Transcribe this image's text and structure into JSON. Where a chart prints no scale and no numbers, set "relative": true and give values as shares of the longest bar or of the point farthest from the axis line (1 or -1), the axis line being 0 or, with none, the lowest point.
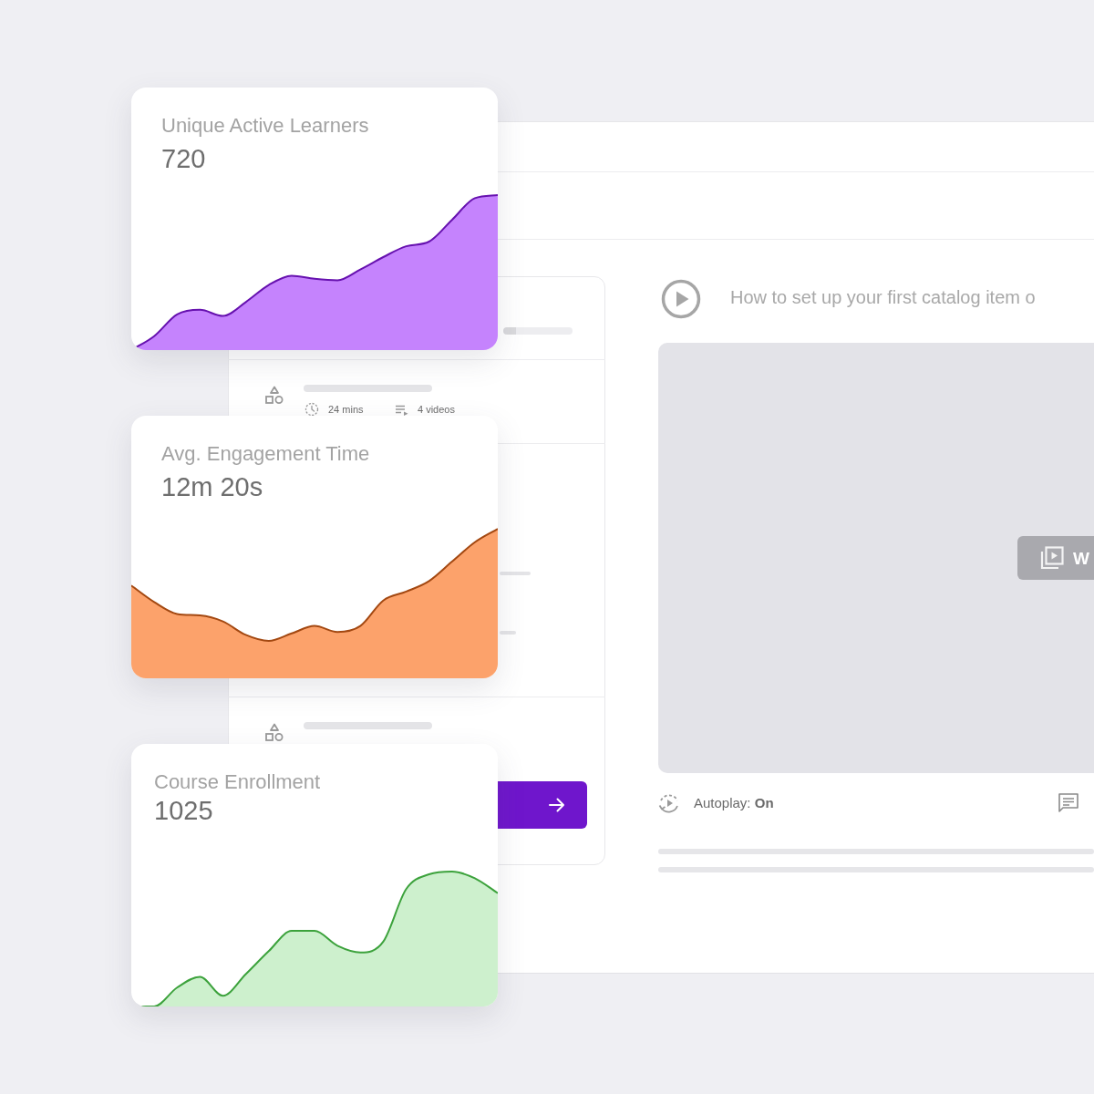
{
  "chart_data": [
    {
      "type": "area",
      "title": "Unique Active Learners",
      "subtitle": "720",
      "categories": [
        null,
        null,
        null,
        null,
        null,
        null,
        null,
        null,
        null,
        null,
        null,
        null,
        null,
        null,
        null,
        null,
        null
      ],
      "values": [
        0,
        0.09,
        0.23,
        0.26,
        0.22,
        0.31,
        0.42,
        0.48,
        0.46,
        0.45,
        0.52,
        0.6,
        0.67,
        0.7,
        0.84,
        0.98,
        1
      ],
      "color": "#c583fd",
      "relative": true
    },
    {
      "type": "area",
      "title": "Avg. Engagement Time",
      "subtitle": "12m 20s",
      "categories": [
        null,
        null,
        null,
        null,
        null,
        null,
        null,
        null,
        null,
        null,
        null,
        null,
        null,
        null,
        null,
        null,
        null
      ],
      "values": [
        0.62,
        0.51,
        0.43,
        0.42,
        0.38,
        0.29,
        0.25,
        0.3,
        0.35,
        0.31,
        0.35,
        0.52,
        0.58,
        0.65,
        0.78,
        0.91,
        1
      ],
      "color": "#fca26b",
      "relative": true
    },
    {
      "type": "area",
      "title": "Course Enrollment",
      "subtitle": "1025",
      "categories": [
        null,
        null,
        null,
        null,
        null,
        null,
        null,
        null,
        null,
        null,
        null,
        null,
        null,
        null,
        null,
        null,
        null
      ],
      "values": [
        0,
        0,
        0.14,
        0.22,
        0.08,
        0.24,
        0.41,
        0.56,
        0.56,
        0.45,
        0.4,
        0.48,
        0.87,
        0.98,
        1,
        0.95,
        0.84
      ],
      "color": "#cdf0cd",
      "relative": true
    },
    {
      "type": "other",
      "annotations": [
        "How to set up your first catalog item o",
        "24 mins",
        "4 videos",
        "Autoplay: On",
        "W"
      ]
    }
  ]
}
